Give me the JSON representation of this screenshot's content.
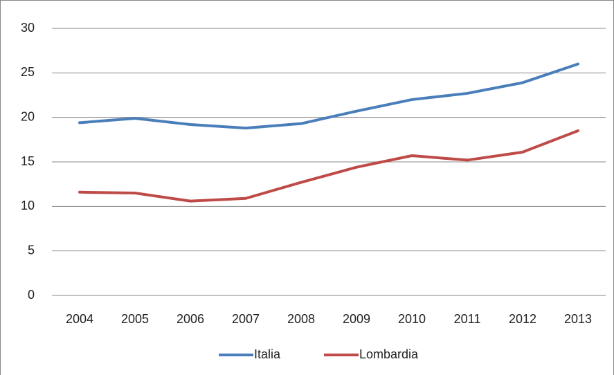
{
  "chart_data": {
    "type": "line",
    "categories": [
      "2004",
      "2005",
      "2006",
      "2007",
      "2008",
      "2009",
      "2010",
      "2011",
      "2012",
      "2013"
    ],
    "series": [
      {
        "name": "Italia",
        "color": "#4a7ebb",
        "values": [
          19.4,
          19.9,
          19.2,
          18.8,
          19.3,
          20.7,
          22.0,
          22.7,
          23.9,
          26.0
        ]
      },
      {
        "name": "Lombardia",
        "color": "#be4b48",
        "values": [
          11.6,
          11.5,
          10.6,
          10.9,
          12.7,
          14.4,
          15.7,
          15.2,
          16.1,
          18.5
        ]
      }
    ],
    "ylim": [
      0,
      30
    ],
    "yticks": [
      0,
      5,
      10,
      15,
      20,
      25,
      30
    ],
    "grid": true,
    "legend": "bottom"
  }
}
